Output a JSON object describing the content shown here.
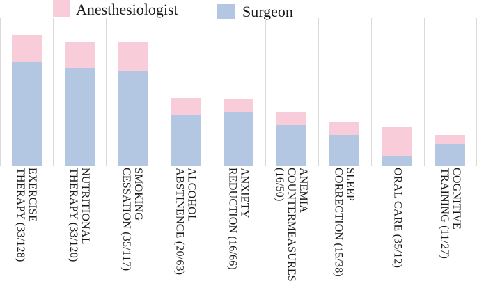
{
  "legend": {
    "items": [
      {
        "label": "Anesthesiologist",
        "color": "#f8ccd9"
      },
      {
        "label": "Surgeon",
        "color": "#b3c6e2"
      }
    ]
  },
  "chart_data": {
    "type": "bar",
    "stacked": true,
    "title": "",
    "xlabel": "",
    "ylabel": "",
    "ylim": [
      0,
      182
    ],
    "grid": "vertical-category-separators",
    "legend_position": "top",
    "categories": [
      "EXERCISE THERAPY (33/128)",
      "NUTRITIONAL THERAPY (33/120)",
      "SMOKING CESSATION (35/117)",
      "ALCOHOL ABSTINENCE (20/63)",
      "ANXIETY REDUCTION (16/66)",
      "ANEMIA COUNTERMEASURES (16/50)",
      "SLEEP CORRECTION (15/38)",
      "ORAL CARE (35/12)",
      "COGNITIVE TRAINING (11/27)"
    ],
    "category_label_lines": [
      [
        "EXERCISE",
        "THERAPY (33/128)"
      ],
      [
        "NUTRITIONAL",
        "THERAPY (33/120)"
      ],
      [
        "SMOKING",
        "CESSATION (35/117)"
      ],
      [
        "ALCOHOL",
        "ABSTINENCE (20/63)"
      ],
      [
        "ANXIETY",
        "REDUCTION (16/66)"
      ],
      [
        "ANEMIA",
        "COUNTERMEASURES",
        "(16/50)"
      ],
      [
        "SLEEP",
        "CORRECTION (15/38)"
      ],
      [
        "ORAL CARE (35/12)"
      ],
      [
        "COGNITIVE",
        "TRAINING (11/27)"
      ]
    ],
    "series": [
      {
        "name": "Surgeon",
        "color": "#b3c6e2",
        "position": "bottom",
        "values": [
          128,
          120,
          117,
          63,
          66,
          50,
          38,
          12,
          27
        ]
      },
      {
        "name": "Anesthesiologist",
        "color": "#f8ccd9",
        "position": "top",
        "values": [
          33,
          33,
          35,
          20,
          16,
          16,
          15,
          35,
          11
        ]
      }
    ]
  },
  "colors": {
    "background": "#ffffff",
    "gridline": "#d9d9d9",
    "text": "#1a1a1a"
  }
}
